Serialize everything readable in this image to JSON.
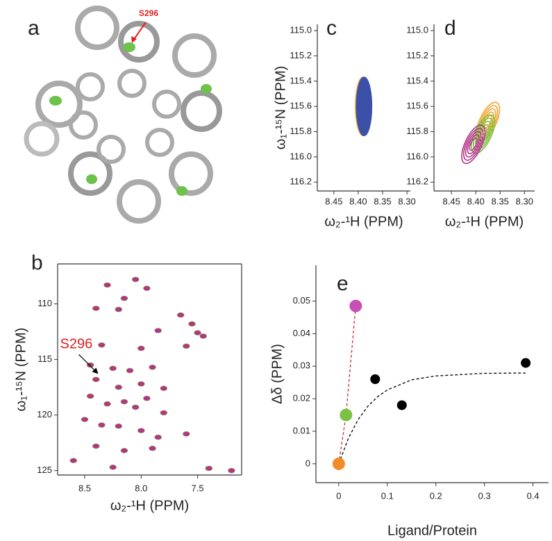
{
  "chart_data": [
    {
      "type": "image",
      "panel": "a",
      "annotation": "S296"
    },
    {
      "type": "spectrum",
      "panel": "b",
      "x_label": "ω₂-¹H (PPM)",
      "y_label": "ω₁-¹⁵N (PPM)",
      "annotation": "S296",
      "xlim": [
        8.74,
        7.11
      ],
      "ylim": [
        125.4,
        106.4
      ],
      "xticks": [
        8.5,
        {
          "value": 8.0,
          "label": "8.0"
        },
        7.5
      ],
      "yticks": [
        110,
        115,
        120,
        125
      ],
      "series": [
        {
          "color": "#b5338a",
          "x": [
            8.3,
            8.05,
            7.95,
            8.15,
            8.4,
            8.2,
            7.65,
            7.55,
            7.5,
            7.85,
            7.45,
            8.35,
            8.0,
            7.6,
            8.45,
            8.25,
            8.1,
            7.9,
            8.4,
            8.2,
            8.0,
            7.8,
            8.45,
            8.3,
            8.15,
            8.05,
            7.95,
            7.8,
            8.5,
            8.35,
            8.2,
            8.0,
            7.85,
            7.6,
            8.4,
            8.15,
            7.9,
            8.6,
            7.4,
            7.2,
            8.25
          ],
          "y": [
            108.3,
            107.8,
            108.6,
            109.5,
            110.4,
            110.5,
            111.0,
            111.8,
            112.6,
            112.4,
            112.9,
            113.7,
            114.0,
            113.8,
            115.5,
            115.8,
            116.0,
            115.7,
            116.8,
            117.5,
            117.2,
            117.6,
            118.3,
            119.0,
            118.8,
            119.3,
            118.5,
            119.8,
            120.4,
            120.9,
            121.0,
            121.4,
            122.0,
            121.7,
            122.8,
            123.2,
            123.0,
            124.1,
            124.8,
            125.0,
            124.7
          ]
        }
      ]
    },
    {
      "type": "contour",
      "panel": "c",
      "x_label": "ω₂-¹H (PPM)",
      "y_label": "ω₁-¹⁵N (PPM)",
      "xlim": [
        8.484,
        8.293
      ],
      "ylim": [
        116.27,
        114.95
      ],
      "xticks": [
        8.45,
        {
          "value": 8.4,
          "label": "8.40"
        },
        8.35,
        {
          "value": 8.3,
          "label": "8.30"
        }
      ],
      "yticks": [
        {
          "value": 115.0,
          "label": "115.0"
        },
        115.2,
        115.4,
        115.6,
        115.8,
        {
          "value": 116.0,
          "label": "116.0"
        },
        116.2
      ],
      "series": [
        {
          "color": "#f2a12a",
          "x": 8.39,
          "y": 115.6
        },
        {
          "color": "#3b50a8",
          "x": 8.388,
          "y": 115.6
        }
      ]
    },
    {
      "type": "contour",
      "panel": "d",
      "x_label": "ω₂-¹H (PPM)",
      "xlim": [
        8.486,
        8.279
      ],
      "ylim": [
        116.27,
        114.95
      ],
      "xticks": [
        8.45,
        {
          "value": 8.4,
          "label": "8.40"
        },
        8.35,
        {
          "value": 8.3,
          "label": "8.30"
        }
      ],
      "yticks": [
        {
          "value": 115.0,
          "label": "115.0"
        },
        115.2,
        115.4,
        115.6,
        115.8,
        {
          "value": 116.0,
          "label": "116.0"
        },
        116.2
      ],
      "series": [
        {
          "color": "#f2a12a",
          "x": 8.375,
          "y": 115.72
        },
        {
          "color": "#7dc142",
          "x": 8.385,
          "y": 115.82
        },
        {
          "color": "#b5338a",
          "x": 8.405,
          "y": 115.9
        }
      ]
    },
    {
      "type": "scatter",
      "panel": "e",
      "x_label": "Ligand/Protein",
      "y_label": "Δδ (PPM)",
      "xlim": [
        -0.047,
        0.432
      ],
      "ylim": [
        -0.0058,
        0.061
      ],
      "xticks": [
        0,
        0.1,
        0.2,
        0.3,
        0.4
      ],
      "yticks": [
        0,
        0.01,
        0.02,
        0.03,
        0.04,
        0.05
      ],
      "series": [
        {
          "kind": "points",
          "x": [
            0,
            0.015,
            0.035,
            0.075,
            0.13,
            0.385
          ],
          "y": [
            0,
            0.015,
            0.0485,
            0.026,
            0.018,
            0.031
          ],
          "colors": [
            "#f28c28",
            "#7dc142",
            "#c84fb4",
            "#000000",
            "#000000",
            "#000000"
          ]
        },
        {
          "kind": "line",
          "color": "#d62728",
          "x": [
            0,
            0.015,
            0.035
          ],
          "y": [
            0,
            0.015,
            0.0485
          ]
        },
        {
          "kind": "line",
          "color": "#000000",
          "x": [
            0,
            0.02,
            0.04,
            0.06,
            0.08,
            0.1,
            0.15,
            0.2,
            0.3,
            0.385
          ],
          "y": [
            0,
            0.0079,
            0.0136,
            0.0177,
            0.0206,
            0.0227,
            0.0258,
            0.027,
            0.0278,
            0.0279
          ]
        }
      ]
    }
  ]
}
